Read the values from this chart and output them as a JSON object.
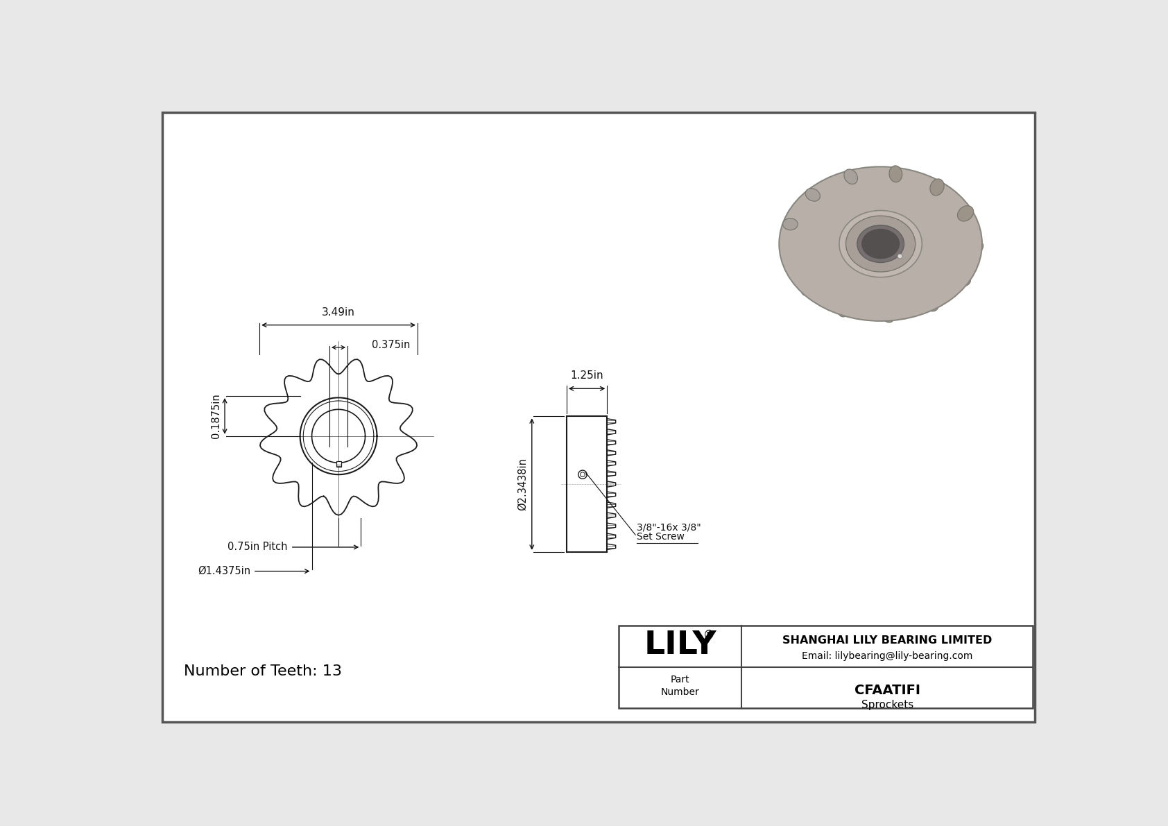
{
  "bg_color": "#e8e8e8",
  "border_color": "#555555",
  "line_color": "#1a1a1a",
  "dim_color": "#111111",
  "part_number": "CFAATIFI",
  "part_type": "Sprockets",
  "company": "SHANGHAI LILY BEARING LIMITED",
  "email": "Email: lilybearing@lily-bearing.com",
  "num_teeth": 13,
  "dim_outer": "3.49in",
  "dim_hub": "0.375in",
  "dim_height": "0.1875in",
  "dim_pitch": "0.75in Pitch",
  "dim_bore": "Ø1.4375in",
  "dim_width": "1.25in",
  "dim_od_side": "Ø2.3438in",
  "set_screw_line1": "3/8\"-16x 3/8\"",
  "set_screw_line2": "Set Screw",
  "logo": "LILY"
}
